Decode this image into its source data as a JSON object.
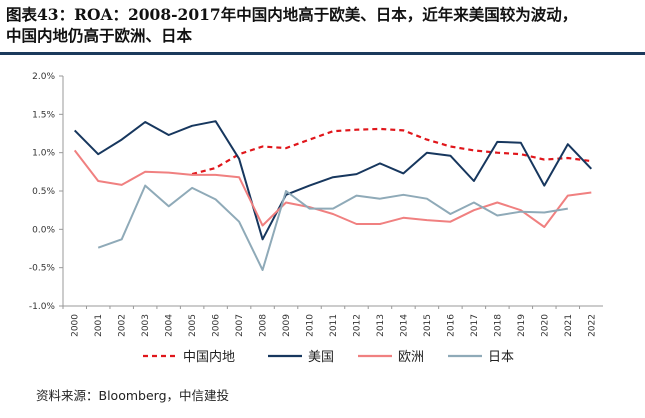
{
  "title_line1": "图表43：ROA：2008-2017年中国内地高于欧美、日本，近年来美国较为波动，",
  "title_line2": "中国内地仍高于欧洲、日本",
  "source": "资料来源：Bloomberg，中信建投",
  "chart_data": {
    "type": "line",
    "x": [
      "2000",
      "2001",
      "2002",
      "2003",
      "2004",
      "2005",
      "2006",
      "2007",
      "2008",
      "2009",
      "2010",
      "2011",
      "2012",
      "2013",
      "2014",
      "2015",
      "2016",
      "2017",
      "2018",
      "2019",
      "2020",
      "2021",
      "2022"
    ],
    "ylim": [
      -1.0,
      2.0
    ],
    "yticks": [
      -1.0,
      -0.5,
      0.0,
      0.5,
      1.0,
      1.5,
      2.0
    ],
    "ytick_labels": [
      "-1.0%",
      "-0.5%",
      "0.0%",
      "0.5%",
      "1.0%",
      "1.5%",
      "2.0%"
    ],
    "grid": false,
    "legend_position": "bottom",
    "series": [
      {
        "name": "中国内地",
        "color": "#e0161b",
        "dash": true,
        "values": [
          null,
          null,
          null,
          null,
          null,
          0.72,
          0.8,
          0.98,
          1.08,
          1.06,
          1.17,
          1.28,
          1.3,
          1.31,
          1.29,
          1.17,
          1.08,
          1.03,
          1.0,
          0.98,
          0.91,
          0.93,
          0.89
        ]
      },
      {
        "name": "美国",
        "color": "#17375e",
        "dash": false,
        "values": [
          1.29,
          0.98,
          1.17,
          1.4,
          1.23,
          1.35,
          1.41,
          0.92,
          -0.13,
          0.45,
          0.57,
          0.68,
          0.72,
          0.86,
          0.73,
          1.0,
          0.96,
          0.63,
          1.14,
          1.13,
          0.57,
          1.11,
          0.79
        ]
      },
      {
        "name": "欧洲",
        "color": "#f08080",
        "dash": false,
        "values": [
          1.03,
          0.63,
          0.58,
          0.75,
          0.74,
          0.71,
          0.71,
          0.68,
          0.05,
          0.35,
          0.29,
          0.2,
          0.07,
          0.07,
          0.15,
          0.12,
          0.1,
          0.25,
          0.35,
          0.25,
          0.03,
          0.44,
          0.48
        ]
      },
      {
        "name": "日本",
        "color": "#8faab8",
        "dash": false,
        "values": [
          null,
          -0.24,
          -0.13,
          0.57,
          0.3,
          0.54,
          0.39,
          0.1,
          -0.53,
          0.5,
          0.27,
          0.27,
          0.44,
          0.4,
          0.45,
          0.4,
          0.2,
          0.35,
          0.18,
          0.23,
          0.22,
          0.27,
          null
        ]
      }
    ]
  }
}
